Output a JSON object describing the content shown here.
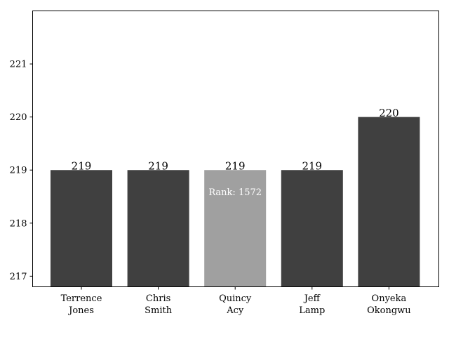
{
  "chart_data": {
    "type": "bar",
    "categories": [
      "Terrence\nJones",
      "Chris\nSmith",
      "Quincy\nAcy",
      "Jeff\nLamp",
      "Onyeka\nOkongwu"
    ],
    "values": [
      219,
      219,
      219,
      219,
      220
    ],
    "value_labels": [
      "219",
      "219",
      "219",
      "219",
      "220"
    ],
    "highlight_index": 2,
    "annotation": "Rank: 1572",
    "ylim": [
      216.8,
      222.0
    ],
    "yticks": [
      217,
      218,
      219,
      220,
      221
    ],
    "colors": {
      "bar": "#404040",
      "highlight": "#a0a0a0",
      "annotation_text": "#ffffff"
    },
    "title": "",
    "xlabel": "",
    "ylabel": "",
    "grid": false
  }
}
